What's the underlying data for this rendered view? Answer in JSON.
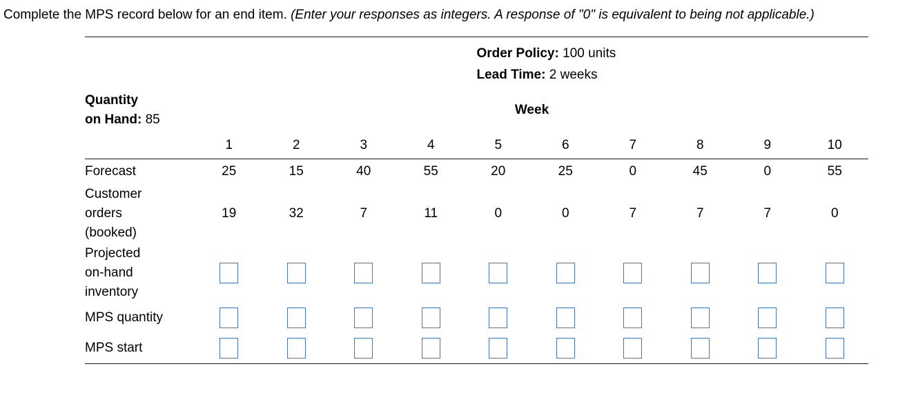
{
  "question": {
    "text_normal": "Complete the MPS record below for an end item. ",
    "text_italic": "(Enter your responses as integers. A response of \"0\" is equivalent to being not applicable.)"
  },
  "table": {
    "order_policy": {
      "label": "Order Policy:",
      "value": "100 units"
    },
    "lead_time": {
      "label": "Lead Time:",
      "value": "2 weeks"
    },
    "quantity_on_hand": {
      "label_line1": "Quantity",
      "label_line2": "on Hand:",
      "value": "85"
    },
    "week_header": "Week",
    "weeks": [
      "1",
      "2",
      "3",
      "4",
      "5",
      "6",
      "7",
      "8",
      "9",
      "10"
    ],
    "forecast": {
      "label": "Forecast",
      "values": [
        "25",
        "15",
        "40",
        "55",
        "20",
        "25",
        "0",
        "45",
        "0",
        "55"
      ]
    },
    "customer_orders": {
      "label": "Customer\norders\n(booked)",
      "values": [
        "19",
        "32",
        "7",
        "11",
        "0",
        "0",
        "7",
        "7",
        "7",
        "0"
      ]
    },
    "projected_inventory": {
      "label": "Projected\non-hand\ninventory"
    },
    "mps_quantity": {
      "label": "MPS quantity"
    },
    "mps_start": {
      "label": "MPS start"
    }
  },
  "colors": {
    "input_border": "#4472C4",
    "rule": "#1a1a1a",
    "text": "#000000"
  }
}
